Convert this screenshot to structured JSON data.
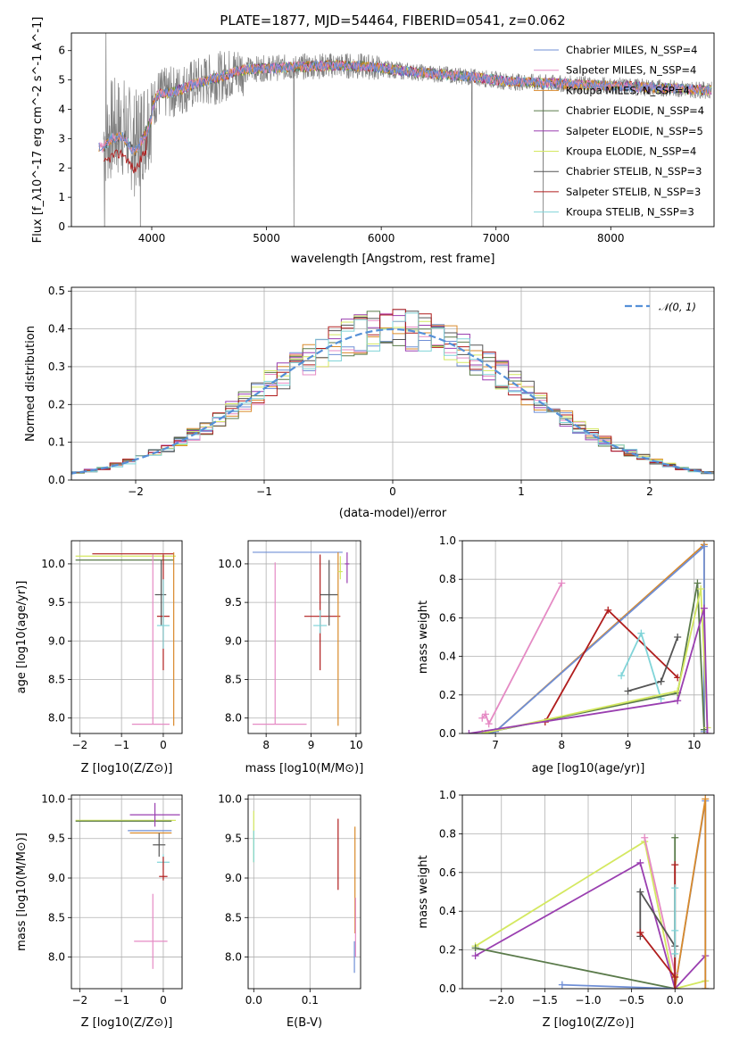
{
  "colors": {
    "Chabrier MILES": "#6f8fd6",
    "Salpeter MILES": "#e58ac4",
    "Kroupa MILES": "#d98a2b",
    "Chabrier ELODIE": "#5a7a4a",
    "Salpeter ELODIE": "#9a3fb0",
    "Kroupa ELODIE": "#d4e860",
    "Chabrier STELIB": "#555555",
    "Salpeter STELIB": "#b01d1d",
    "Kroupa STELIB": "#80d4d8",
    "data": "#808080",
    "normal": "#5590d8"
  },
  "chart_data": [
    {
      "id": "spectrum",
      "type": "line",
      "title": "PLATE=1877, MJD=54464, FIBERID=0541, z=0.062",
      "xlabel": "wavelength [Angstrom, rest frame]",
      "ylabel": "Flux [f_λ10^-17 erg cm^-2 s^-1 A^-1]",
      "xlim": [
        3300,
        8900
      ],
      "ylim": [
        0,
        6.6
      ],
      "xticks": [
        "4000",
        "5000",
        "6000",
        "7000",
        "8000"
      ],
      "yticks": [
        "0",
        "1",
        "2",
        "3",
        "4",
        "5",
        "6"
      ],
      "grid": false,
      "legend_position": "upper-right",
      "legend": [
        "Chabrier MILES, N_SSP=4",
        "Salpeter MILES, N_SSP=4",
        "Kroupa MILES, N_SSP=4",
        "Chabrier ELODIE, N_SSP=4",
        "Salpeter ELODIE, N_SSP=5",
        "Kroupa ELODIE, N_SSP=4",
        "Chabrier STELIB, N_SSP=3",
        "Salpeter STELIB, N_SSP=3",
        "Kroupa STELIB, N_SSP=3"
      ],
      "continuum": {
        "x": [
          3580,
          3650,
          3750,
          3850,
          3950,
          4050,
          4200,
          4400,
          4600,
          4800,
          5000,
          5300,
          5600,
          5900,
          6200,
          6500,
          6800,
          7100,
          7400,
          7700,
          8000,
          8300,
          8600,
          8850
        ],
        "y": [
          3.0,
          3.3,
          3.4,
          2.8,
          3.5,
          4.5,
          4.6,
          4.9,
          5.1,
          5.35,
          5.4,
          5.45,
          5.5,
          5.45,
          5.3,
          5.2,
          5.1,
          4.95,
          4.9,
          4.85,
          4.8,
          4.75,
          4.7,
          4.65
        ]
      }
    },
    {
      "id": "residuals",
      "type": "histogram",
      "xlabel": "(data-model)/error",
      "ylabel": "Normed distribution",
      "xlim": [
        -2.5,
        2.5
      ],
      "ylim": [
        0,
        0.51
      ],
      "xticks": [
        "−2",
        "−1",
        "0",
        "1",
        "2"
      ],
      "yticks": [
        "0.0",
        "0.1",
        "0.2",
        "0.3",
        "0.4",
        "0.5"
      ],
      "grid": true,
      "legend_position": "upper-right",
      "legend": [
        "𝒩(0, 1)"
      ],
      "bin_width": 0.1
    },
    {
      "id": "age_vs_Z",
      "type": "errorbar",
      "xlabel": "Z [log10(Z/Z⊙)]",
      "ylabel": "age  [log10(age/yr)]",
      "xlim": [
        -2.2,
        0.45
      ],
      "ylim": [
        7.8,
        10.3
      ],
      "xticks": [
        "−2",
        "−1",
        "0"
      ],
      "yticks": [
        "8.0",
        "8.5",
        "9.0",
        "9.5",
        "10.0"
      ],
      "grid": true,
      "points": [
        {
          "model": "Kroupa ELODIE",
          "x": -0.8,
          "xerr": [
            1.3,
            1.1
          ],
          "y": 10.1,
          "yerr": [
            0.0,
            0.0
          ]
        },
        {
          "model": "Chabrier ELODIE",
          "x": -0.9,
          "xerr": [
            1.2,
            1.15
          ],
          "y": 10.05,
          "yerr": [
            0.0,
            0.0
          ]
        },
        {
          "model": "Salpeter STELIB",
          "x": -0.3,
          "xerr": [
            1.4,
            0.55
          ],
          "y": 10.13,
          "yerr": [
            0.0,
            0.0
          ]
        },
        {
          "model": "Chabrier STELIB",
          "x": -0.05,
          "xerr": [
            0.15,
            0.12
          ],
          "y": 9.6,
          "yerr": [
            0.4,
            0.45
          ]
        },
        {
          "model": "Salpeter STELIB (2)",
          "x": 0.0,
          "xerr": [
            0.15,
            0.15
          ],
          "y": 9.32,
          "yerr": [
            0.7,
            0.8
          ]
        },
        {
          "model": "Kroupa STELIB",
          "x": 0.0,
          "xerr": [
            0.15,
            0.15
          ],
          "y": 9.2,
          "yerr": [
            0.3,
            0.6
          ]
        },
        {
          "model": "Salpeter MILES",
          "x": -0.25,
          "xerr": [
            0.5,
            0.4
          ],
          "y": 7.92,
          "yerr": [
            0.0,
            2.2
          ]
        },
        {
          "model": "Kroupa MILES",
          "x": 0.25,
          "xerr": [
            0.0,
            0.0
          ],
          "y": 8.0,
          "yerr": [
            0.1,
            2.15
          ]
        }
      ]
    },
    {
      "id": "age_vs_mass",
      "type": "errorbar",
      "xlabel": "mass [log10(M/M⊙)]",
      "ylabel": "",
      "xlim": [
        7.6,
        10.1
      ],
      "ylim": [
        7.8,
        10.3
      ],
      "xticks": [
        "8",
        "9",
        "10"
      ],
      "yticks": [
        "8.0",
        "8.5",
        "9.0",
        "9.5",
        "10.0"
      ],
      "grid": true,
      "points": [
        {
          "model": "Chabrier MILES",
          "x": 8.8,
          "xerr": [
            1.1,
            0.9
          ],
          "y": 10.15,
          "yerr": [
            0.0,
            0.0
          ]
        },
        {
          "model": "Salpeter STELIB",
          "x": 9.2,
          "xerr": [
            0.35,
            0.45
          ],
          "y": 9.32,
          "yerr": [
            0.7,
            0.8
          ]
        },
        {
          "model": "Chabrier STELIB",
          "x": 9.4,
          "xerr": [
            0.2,
            0.2
          ],
          "y": 9.6,
          "yerr": [
            0.4,
            0.45
          ]
        },
        {
          "model": "Kroupa STELIB",
          "x": 9.2,
          "xerr": [
            0.15,
            0.15
          ],
          "y": 9.2,
          "yerr": [
            0.1,
            0.2
          ]
        },
        {
          "model": "Salpeter MILES",
          "x": 8.2,
          "xerr": [
            0.5,
            0.7
          ],
          "y": 7.92,
          "yerr": [
            0.0,
            2.1
          ]
        },
        {
          "model": "Kroupa MILES",
          "x": 9.6,
          "xerr": [
            0.0,
            0.0
          ],
          "y": 8.0,
          "yerr": [
            0.1,
            2.15
          ]
        },
        {
          "model": "Salpeter ELODIE",
          "x": 9.8,
          "xerr": [
            0.05,
            0.05
          ],
          "y": 10.0,
          "yerr": [
            0.25,
            0.15
          ]
        },
        {
          "model": "Kroupa ELODIE",
          "x": 9.65,
          "xerr": [
            0.05,
            0.05
          ],
          "y": 9.9,
          "yerr": [
            0.1,
            0.2
          ]
        }
      ]
    },
    {
      "id": "weight_vs_age",
      "type": "line",
      "xlabel": "age  [log10(age/yr)]",
      "ylabel": "mass weight",
      "xlim": [
        6.5,
        10.3
      ],
      "ylim": [
        0,
        1.0
      ],
      "xticks": [
        "7",
        "8",
        "9",
        "10"
      ],
      "yticks": [
        "0.0",
        "0.2",
        "0.4",
        "0.6",
        "0.8",
        "1.0"
      ],
      "grid": true,
      "series": [
        {
          "model": "Salpeter MILES",
          "x": [
            6.8,
            6.85,
            6.9,
            8.0
          ],
          "y": [
            0.08,
            0.1,
            0.05,
            0.78
          ]
        },
        {
          "model": "Kroupa MILES",
          "x": [
            6.85,
            7.0,
            10.15,
            10.15
          ],
          "y": [
            0.0,
            0.01,
            0.98,
            0.0
          ]
        },
        {
          "model": "Chabrier MILES",
          "x": [
            6.9,
            7.0,
            10.15,
            10.15
          ],
          "y": [
            0.0,
            0.01,
            0.97,
            0.01
          ]
        },
        {
          "model": "Salpeter STELIB",
          "x": [
            7.75,
            8.7,
            9.75
          ],
          "y": [
            0.06,
            0.64,
            0.29
          ]
        },
        {
          "model": "Chabrier STELIB",
          "x": [
            9.0,
            9.5,
            9.75
          ],
          "y": [
            0.22,
            0.27,
            0.5
          ]
        },
        {
          "model": "Kroupa STELIB",
          "x": [
            8.9,
            9.2,
            9.5
          ],
          "y": [
            0.3,
            0.52,
            0.18
          ]
        },
        {
          "model": "Chabrier ELODIE",
          "x": [
            6.8,
            9.75,
            10.05,
            10.15
          ],
          "y": [
            0.0,
            0.21,
            0.78,
            0.02
          ]
        },
        {
          "model": "Kroupa ELODIE",
          "x": [
            6.8,
            9.75,
            10.1,
            10.2
          ],
          "y": [
            0.0,
            0.22,
            0.75,
            0.03
          ]
        },
        {
          "model": "Salpeter ELODIE",
          "x": [
            6.6,
            9.75,
            10.15,
            10.2
          ],
          "y": [
            0.0,
            0.17,
            0.65,
            0.0
          ]
        }
      ]
    },
    {
      "id": "mass_vs_Z",
      "type": "errorbar",
      "xlabel": "Z [log10(Z/Z⊙)]",
      "ylabel": "mass [log10(M/M⊙)]",
      "xlim": [
        -2.2,
        0.45
      ],
      "ylim": [
        7.6,
        10.05
      ],
      "xticks": [
        "−2",
        "−1",
        "0"
      ],
      "yticks": [
        "8.0",
        "8.5",
        "9.0",
        "9.5",
        "10.0"
      ],
      "grid": true,
      "points": [
        {
          "model": "Kroupa ELODIE",
          "x": -0.9,
          "xerr": [
            1.2,
            1.2
          ],
          "y": 9.73,
          "yerr": [
            0.0,
            0.0
          ]
        },
        {
          "model": "Chabrier ELODIE",
          "x": -0.95,
          "xerr": [
            1.15,
            1.15
          ],
          "y": 9.72,
          "yerr": [
            0.0,
            0.0
          ]
        },
        {
          "model": "Salpeter ELODIE",
          "x": -0.2,
          "xerr": [
            0.6,
            0.6
          ],
          "y": 9.8,
          "yerr": [
            0.15,
            0.15
          ]
        },
        {
          "model": "Chabrier MILES",
          "x": -0.3,
          "xerr": [
            0.55,
            0.5
          ],
          "y": 9.6,
          "yerr": [
            0.0,
            0.0
          ]
        },
        {
          "model": "Kroupa MILES",
          "x": -0.25,
          "xerr": [
            0.55,
            0.45
          ],
          "y": 9.57,
          "yerr": [
            0.0,
            0.0
          ]
        },
        {
          "model": "Chabrier STELIB",
          "x": -0.1,
          "xerr": [
            0.15,
            0.15
          ],
          "y": 9.42,
          "yerr": [
            0.15,
            0.15
          ]
        },
        {
          "model": "Kroupa STELIB",
          "x": 0.0,
          "xerr": [
            0.15,
            0.15
          ],
          "y": 9.2,
          "yerr": [
            0.1,
            0.1
          ]
        },
        {
          "model": "Salpeter STELIB",
          "x": 0.0,
          "xerr": [
            0.1,
            0.1
          ],
          "y": 9.02,
          "yerr": [
            0.05,
            0.25
          ]
        },
        {
          "model": "Salpeter MILES",
          "x": -0.25,
          "xerr": [
            0.45,
            0.35
          ],
          "y": 8.2,
          "yerr": [
            0.35,
            0.6
          ]
        }
      ]
    },
    {
      "id": "mass_vs_ebv",
      "type": "errorbar",
      "xlabel": "E(B-V)",
      "ylabel": "",
      "xlim": [
        -0.01,
        0.19
      ],
      "ylim": [
        7.6,
        10.05
      ],
      "xticks": [
        "0.0",
        "0.1"
      ],
      "yticks": [
        "8.0",
        "8.5",
        "9.0",
        "9.5",
        "10.0"
      ],
      "grid": true,
      "points": [
        {
          "model": "Kroupa ELODIE",
          "x": 0.0,
          "y": 9.5,
          "yerr": [
            0.3,
            0.35
          ]
        },
        {
          "model": "Kroupa STELIB",
          "x": 0.0,
          "y": 9.4,
          "yerr": [
            0.2,
            0.2
          ]
        },
        {
          "model": "Salpeter STELIB",
          "x": 0.15,
          "y": 9.3,
          "yerr": [
            0.45,
            0.45
          ]
        },
        {
          "model": "Kroupa MILES",
          "x": 0.18,
          "y": 8.7,
          "yerr": [
            0.4,
            0.95
          ]
        },
        {
          "model": "Salpeter MILES",
          "x": 0.181,
          "y": 8.3,
          "yerr": [
            0.3,
            0.45
          ]
        },
        {
          "model": "Chabrier MILES",
          "x": 0.179,
          "y": 8.0,
          "yerr": [
            0.2,
            0.2
          ]
        }
      ]
    },
    {
      "id": "weight_vs_Z",
      "type": "line",
      "xlabel": "Z [log10(Z/Z⊙)]",
      "ylabel": "mass weight",
      "xlim": [
        -2.45,
        0.45
      ],
      "ylim": [
        0,
        1.0
      ],
      "xticks": [
        "−2.0",
        "−1.5",
        "−1.0",
        "−0.5",
        "0.0"
      ],
      "yticks": [
        "0.0",
        "0.2",
        "0.4",
        "0.6",
        "0.8",
        "1.0"
      ],
      "grid": true,
      "series": [
        {
          "model": "Kroupa ELODIE",
          "x": [
            -2.3,
            -0.35,
            0.0,
            0.35
          ],
          "y": [
            0.22,
            0.76,
            0.0,
            0.04
          ]
        },
        {
          "model": "Salpeter ELODIE",
          "x": [
            -2.3,
            -0.4,
            0.0,
            0.35
          ],
          "y": [
            0.17,
            0.65,
            0.0,
            0.17
          ]
        },
        {
          "model": "Chabrier ELODIE",
          "x": [
            -2.3,
            0.0,
            0.0
          ],
          "y": [
            0.21,
            0.0,
            0.78
          ]
        },
        {
          "model": "Chabrier MILES",
          "x": [
            -1.3,
            0.0,
            0.35,
            0.35
          ],
          "y": [
            0.02,
            0.0,
            0.97,
            0.0
          ]
        },
        {
          "model": "Kroupa MILES",
          "x": [
            0.0,
            0.35,
            0.35
          ],
          "y": [
            0.0,
            0.98,
            0.0
          ]
        },
        {
          "model": "Salpeter MILES",
          "x": [
            -0.35,
            0.0
          ],
          "y": [
            0.78,
            0.08
          ]
        },
        {
          "model": "Chabrier STELIB",
          "x": [
            -0.4,
            -0.4,
            0.0,
            0.0
          ],
          "y": [
            0.27,
            0.5,
            0.22,
            0.0
          ]
        },
        {
          "model": "Salpeter STELIB",
          "x": [
            -0.4,
            0.0,
            0.0,
            0.0
          ],
          "y": [
            0.29,
            0.06,
            0.64,
            0.0
          ]
        },
        {
          "model": "Kroupa STELIB",
          "x": [
            0.0,
            0.0,
            0.0
          ],
          "y": [
            0.3,
            0.52,
            0.18
          ]
        }
      ]
    }
  ]
}
